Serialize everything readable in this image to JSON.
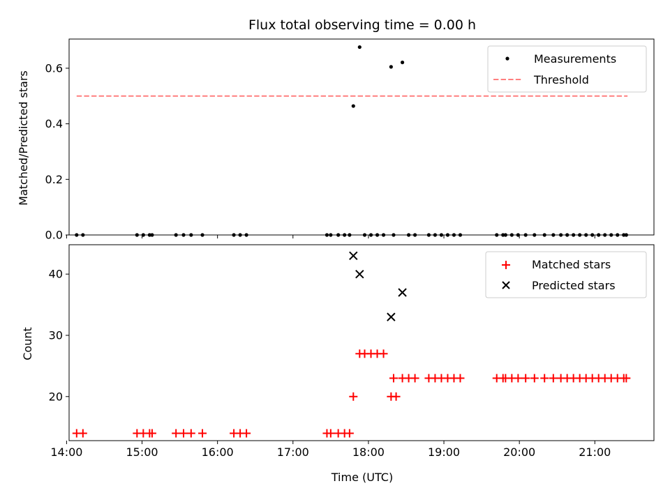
{
  "chart_data": [
    {
      "type": "scatter",
      "title": "Flux total observing time = 0.00 h",
      "xlabel": "",
      "ylabel": "Matched/Predicted stars",
      "xlim": [
        "14:02",
        "21:47"
      ],
      "ylim": [
        0.0,
        0.705
      ],
      "yticks": [
        0.0,
        0.2,
        0.4,
        0.6
      ],
      "ytick_labels": [
        "0.0",
        "0.2",
        "0.4",
        "0.6"
      ],
      "xtick_times": [
        "14:00",
        "15:00",
        "16:00",
        "17:00",
        "18:00",
        "19:00",
        "20:00",
        "21:00"
      ],
      "legend": {
        "placement": "top-right",
        "entries": [
          "Measurements",
          "Threshold"
        ]
      },
      "threshold": {
        "name": "Threshold",
        "value": 0.5,
        "x_start": "14:08",
        "x_end": "21:26",
        "color": "#ff7f7f",
        "style": "dashed"
      },
      "series": [
        {
          "name": "Measurements",
          "marker": "dot",
          "color": "#000000",
          "points": [
            [
              "14:08",
              0.0
            ],
            [
              "14:13",
              0.0
            ],
            [
              "14:56",
              0.0
            ],
            [
              "15:01",
              0.0
            ],
            [
              "15:06",
              0.0
            ],
            [
              "15:08",
              0.0
            ],
            [
              "15:27",
              0.0
            ],
            [
              "15:33",
              0.0
            ],
            [
              "15:39",
              0.0
            ],
            [
              "15:48",
              0.0
            ],
            [
              "16:13",
              0.0
            ],
            [
              "16:18",
              0.0
            ],
            [
              "16:23",
              0.0
            ],
            [
              "17:27",
              0.0
            ],
            [
              "17:30",
              0.0
            ],
            [
              "17:36",
              0.0
            ],
            [
              "17:41",
              0.0
            ],
            [
              "17:45",
              0.0
            ],
            [
              "17:48",
              0.464
            ],
            [
              "17:53",
              0.676
            ],
            [
              "17:57",
              0.0
            ],
            [
              "18:02",
              0.0
            ],
            [
              "18:07",
              0.0
            ],
            [
              "18:12",
              0.0
            ],
            [
              "18:18",
              0.605
            ],
            [
              "18:20",
              0.0
            ],
            [
              "18:27",
              0.621
            ],
            [
              "18:32",
              0.0
            ],
            [
              "18:37",
              0.0
            ],
            [
              "18:48",
              0.0
            ],
            [
              "18:53",
              0.0
            ],
            [
              "18:58",
              0.0
            ],
            [
              "19:03",
              0.0
            ],
            [
              "19:08",
              0.0
            ],
            [
              "19:13",
              0.0
            ],
            [
              "19:42",
              0.0
            ],
            [
              "19:47",
              0.0
            ],
            [
              "19:49",
              0.0
            ],
            [
              "19:54",
              0.0
            ],
            [
              "19:59",
              0.0
            ],
            [
              "20:05",
              0.0
            ],
            [
              "20:12",
              0.0
            ],
            [
              "20:20",
              0.0
            ],
            [
              "20:27",
              0.0
            ],
            [
              "20:33",
              0.0
            ],
            [
              "20:38",
              0.0
            ],
            [
              "20:43",
              0.0
            ],
            [
              "20:48",
              0.0
            ],
            [
              "20:53",
              0.0
            ],
            [
              "20:58",
              0.0
            ],
            [
              "21:03",
              0.0
            ],
            [
              "21:08",
              0.0
            ],
            [
              "21:13",
              0.0
            ],
            [
              "21:18",
              0.0
            ],
            [
              "21:23",
              0.0
            ],
            [
              "21:25",
              0.0
            ]
          ]
        }
      ]
    },
    {
      "type": "scatter",
      "title": "",
      "xlabel": "Time (UTC)",
      "ylabel": "Count",
      "xlim": [
        "14:02",
        "21:47"
      ],
      "ylim": [
        12.8,
        44.8
      ],
      "yticks": [
        20,
        30,
        40
      ],
      "ytick_labels": [
        "20",
        "30",
        "40"
      ],
      "xtick_times": [
        "14:00",
        "15:00",
        "16:00",
        "17:00",
        "18:00",
        "19:00",
        "20:00",
        "21:00"
      ],
      "xtick_labels": [
        "14:00",
        "15:00",
        "16:00",
        "17:00",
        "18:00",
        "19:00",
        "20:00",
        "21:00"
      ],
      "legend": {
        "placement": "top-right",
        "entries": [
          "Matched stars",
          "Predicted stars"
        ]
      },
      "series": [
        {
          "name": "Matched stars",
          "marker": "plus",
          "color": "#ff0000",
          "points": [
            [
              "14:08",
              14
            ],
            [
              "14:13",
              14
            ],
            [
              "14:56",
              14
            ],
            [
              "15:01",
              14
            ],
            [
              "15:06",
              14
            ],
            [
              "15:08",
              14
            ],
            [
              "15:27",
              14
            ],
            [
              "15:33",
              14
            ],
            [
              "15:39",
              14
            ],
            [
              "15:48",
              14
            ],
            [
              "16:13",
              14
            ],
            [
              "16:18",
              14
            ],
            [
              "16:23",
              14
            ],
            [
              "17:27",
              14
            ],
            [
              "17:30",
              14
            ],
            [
              "17:36",
              14
            ],
            [
              "17:41",
              14
            ],
            [
              "17:45",
              14
            ],
            [
              "17:48",
              20
            ],
            [
              "17:53",
              27
            ],
            [
              "17:57",
              27
            ],
            [
              "18:02",
              27
            ],
            [
              "18:07",
              27
            ],
            [
              "18:12",
              27
            ],
            [
              "18:18",
              20
            ],
            [
              "18:20",
              23
            ],
            [
              "18:22",
              20
            ],
            [
              "18:27",
              23
            ],
            [
              "18:32",
              23
            ],
            [
              "18:37",
              23
            ],
            [
              "18:48",
              23
            ],
            [
              "18:53",
              23
            ],
            [
              "18:58",
              23
            ],
            [
              "19:03",
              23
            ],
            [
              "19:08",
              23
            ],
            [
              "19:13",
              23
            ],
            [
              "19:42",
              23
            ],
            [
              "19:47",
              23
            ],
            [
              "19:49",
              23
            ],
            [
              "19:54",
              23
            ],
            [
              "19:59",
              23
            ],
            [
              "20:05",
              23
            ],
            [
              "20:12",
              23
            ],
            [
              "20:20",
              23
            ],
            [
              "20:27",
              23
            ],
            [
              "20:33",
              23
            ],
            [
              "20:38",
              23
            ],
            [
              "20:43",
              23
            ],
            [
              "20:48",
              23
            ],
            [
              "20:53",
              23
            ],
            [
              "20:58",
              23
            ],
            [
              "21:03",
              23
            ],
            [
              "21:08",
              23
            ],
            [
              "21:13",
              23
            ],
            [
              "21:18",
              23
            ],
            [
              "21:23",
              23
            ],
            [
              "21:25",
              23
            ]
          ]
        },
        {
          "name": "Predicted stars",
          "marker": "x",
          "color": "#000000",
          "points": [
            [
              "17:48",
              43
            ],
            [
              "17:53",
              40
            ],
            [
              "18:18",
              33
            ],
            [
              "18:27",
              37
            ]
          ]
        }
      ]
    }
  ]
}
